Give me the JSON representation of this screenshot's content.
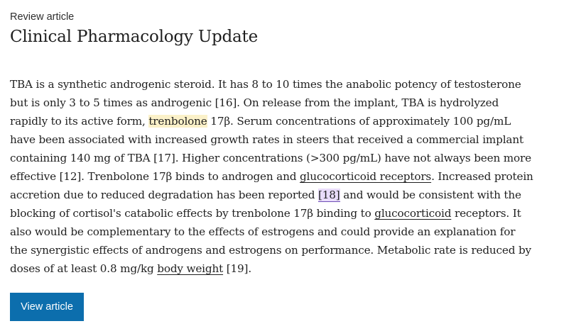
{
  "header": {
    "kicker": "Review article",
    "title": "Clinical Pharmacology Update"
  },
  "paragraph": {
    "s1": "TBA is a synthetic androgenic steroid. It has 8 to 10 times the anabolic potency of testosterone but is only 3 to 5 times as androgenic [16]. On release from the implant, TBA is hydrolyzed rapidly to its active form, ",
    "highlight_term": "trenbolone",
    "s2": " 17β. Serum concentrations of approximately 100 pg/mL have been associated with increased growth rates in steers that received a commercial implant containing 140 mg of TBA [17]. Higher concentrations (>300 pg/mL) have not always been more effective [12]. Trenbolone 17β binds to androgen and ",
    "link_glucocorticoid_receptors": "glucocorticoid receptors",
    "s3": ". Increased protein accretion due to reduced degradation has been reported ",
    "ref_18": "[18]",
    "s4": " and would be consistent with the blocking of cortisol's catabolic effects by trenbolone 17β binding to ",
    "link_glucocorticoid": "glucocorticoid",
    "s5": " receptors. It also would be complementary to the effects of estrogens and could provide an explanation for the synergistic effects of androgens and estrogens on performance. Metabolic rate is reduced by doses of at least 0.8 mg/kg ",
    "link_body_weight": "body weight",
    "s6": " [19]."
  },
  "actions": {
    "view_article": "View article"
  },
  "colors": {
    "button": "#0c6ead",
    "term_highlight": "#fbf1c9",
    "reference_highlight": "#e9dcfb"
  }
}
